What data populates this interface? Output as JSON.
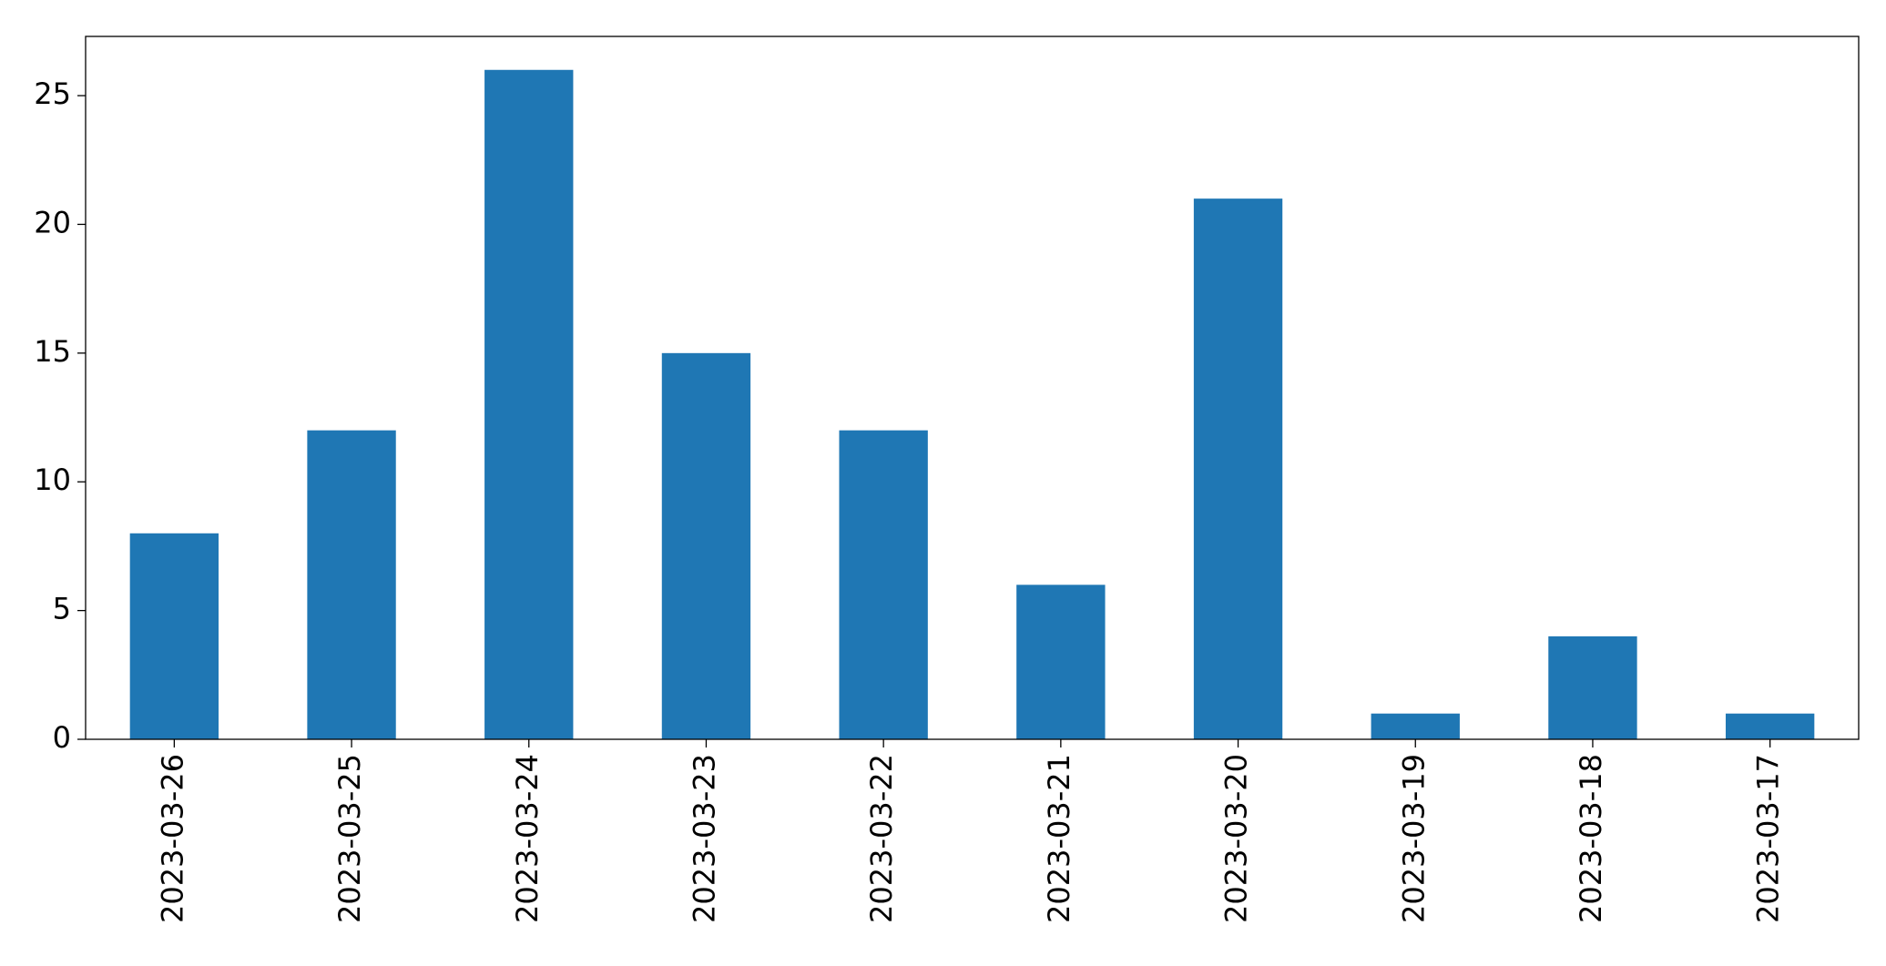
{
  "chart_data": {
    "type": "bar",
    "categories": [
      "2023-03-26",
      "2023-03-25",
      "2023-03-24",
      "2023-03-23",
      "2023-03-22",
      "2023-03-21",
      "2023-03-20",
      "2023-03-19",
      "2023-03-18",
      "2023-03-17"
    ],
    "values": [
      8,
      12,
      26,
      15,
      12,
      6,
      21,
      1,
      4,
      1
    ],
    "color": "#1f77b4",
    "ylim": [
      0,
      27.3
    ],
    "yticks": [
      0,
      5,
      10,
      15,
      20,
      25
    ],
    "grid": false
  }
}
